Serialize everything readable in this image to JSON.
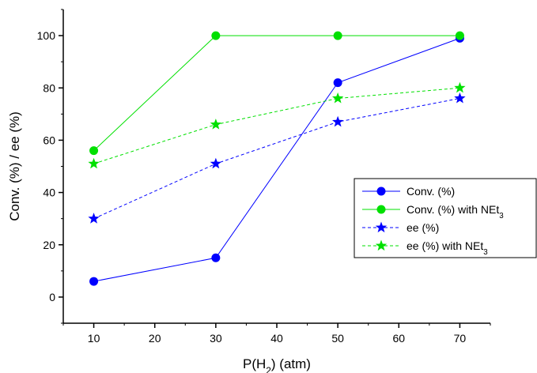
{
  "chart_data": {
    "type": "line",
    "xlabel": "P(H2) (atm)",
    "ylabel": "Conv. (%) / ee (%)",
    "xlim": [
      5,
      75
    ],
    "ylim": [
      -10,
      110
    ],
    "xticks": [
      10,
      20,
      30,
      40,
      50,
      60,
      70
    ],
    "yticks": [
      0,
      20,
      40,
      60,
      80,
      100
    ],
    "x": [
      10,
      30,
      50,
      70
    ],
    "grid": false,
    "legend_position": "right",
    "series": [
      {
        "name": "Conv. (%)",
        "values": [
          6,
          15,
          82,
          99
        ],
        "color": "#0000ff",
        "marker": "circle",
        "dash": "solid"
      },
      {
        "name": "Conv. (%) with NEt3",
        "values": [
          56,
          100,
          100,
          100
        ],
        "color": "#00e000",
        "marker": "circle",
        "dash": "solid"
      },
      {
        "name": "ee (%)",
        "values": [
          30,
          51,
          67,
          76
        ],
        "color": "#0000ff",
        "marker": "star",
        "dash": "dashed"
      },
      {
        "name": "ee (%) with NEt3",
        "values": [
          51,
          66,
          76,
          80
        ],
        "color": "#00e000",
        "marker": "star",
        "dash": "dashed"
      }
    ]
  }
}
